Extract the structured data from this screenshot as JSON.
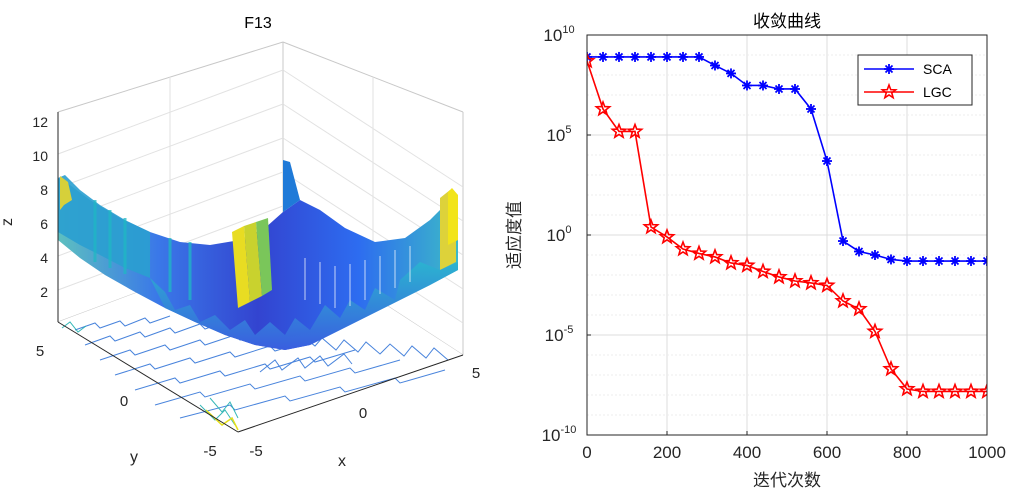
{
  "figure": {
    "left_panel": {
      "title": "F13",
      "xlabel": "x",
      "ylabel": "y",
      "zlabel": "z",
      "z_ticks": [
        "2",
        "4",
        "6",
        "8",
        "10",
        "12"
      ],
      "x_ticks": [
        "-5",
        "0",
        "5"
      ],
      "y_ticks": [
        "-5",
        "0",
        "5"
      ]
    }
  },
  "chart_data": [
    {
      "type": "surface",
      "title": "F13",
      "xlabel": "x",
      "ylabel": "y",
      "zlabel": "z",
      "xlim": [
        -5,
        5
      ],
      "ylim": [
        -5,
        5
      ],
      "zlim": [
        0,
        13
      ],
      "colormap": [
        "#3e26a8",
        "#2e87f7",
        "#22c0c4",
        "#94cb3a",
        "#f9fb15"
      ]
    },
    {
      "type": "line",
      "title": "收敛曲线",
      "xlabel": "迭代次数",
      "ylabel": "适应度值",
      "xlim": [
        0,
        1000
      ],
      "ylim": [
        1e-10,
        10000000000.0
      ],
      "y_scale": "log",
      "grid": true,
      "legend_position": "top-right",
      "x_ticks": [
        "0",
        "200",
        "400",
        "600",
        "800",
        "1000"
      ],
      "y_ticks": [
        {
          "base": "10",
          "exp": "-10",
          "value": 1e-10
        },
        {
          "base": "10",
          "exp": "-5",
          "value": 1e-05
        },
        {
          "base": "10",
          "exp": "0",
          "value": 1
        },
        {
          "base": "10",
          "exp": "5",
          "value": 100000.0
        },
        {
          "base": "10",
          "exp": "10",
          "value": 10000000000.0
        }
      ],
      "x": [
        0,
        40,
        80,
        120,
        160,
        200,
        240,
        280,
        320,
        360,
        400,
        440,
        480,
        520,
        560,
        600,
        640,
        680,
        720,
        760,
        800,
        840,
        880,
        920,
        960,
        1000
      ],
      "series": [
        {
          "name": "SCA",
          "color": "#0000ff",
          "marker": "asterisk",
          "values": [
            800000000.0,
            800000000.0,
            800000000.0,
            800000000.0,
            800000000.0,
            800000000.0,
            800000000.0,
            800000000.0,
            300000000.0,
            120000000.0,
            30000000.0,
            30000000.0,
            20000000.0,
            20000000.0,
            2000000.0,
            5000.0,
            0.5,
            0.15,
            0.1,
            0.06,
            0.05,
            0.05,
            0.05,
            0.05,
            0.05,
            0.05
          ]
        },
        {
          "name": "LGC",
          "color": "#ff0000",
          "marker": "star",
          "values": [
            500000000.0,
            2000000.0,
            150000.0,
            150000.0,
            2.5,
            0.8,
            0.2,
            0.12,
            0.08,
            0.04,
            0.03,
            0.015,
            0.008,
            0.005,
            0.004,
            0.003,
            0.0005,
            0.0002,
            1.5e-05,
            2e-07,
            2e-08,
            1.5e-08,
            1.5e-08,
            1.5e-08,
            1.5e-08,
            1.5e-08
          ]
        }
      ]
    }
  ]
}
